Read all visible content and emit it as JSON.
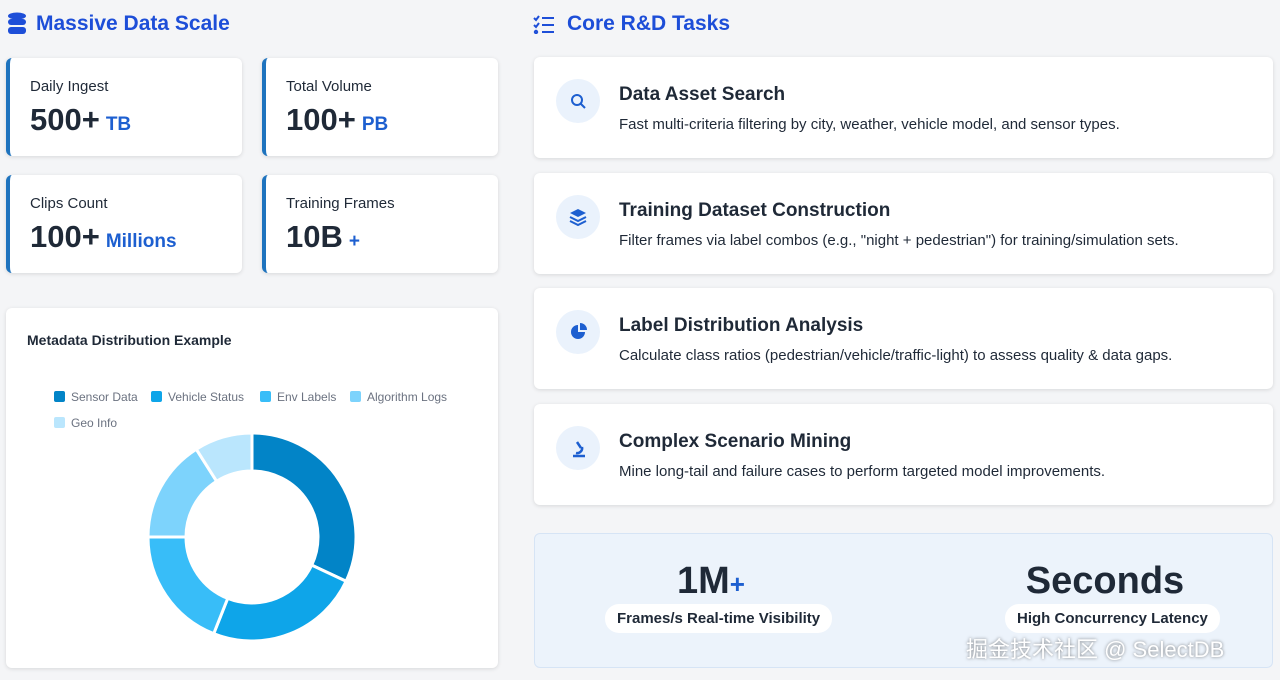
{
  "left_section": {
    "title": "Massive Data Scale",
    "stats": [
      {
        "label": "Daily Ingest",
        "value": "500+",
        "unit": "TB"
      },
      {
        "label": "Total Volume",
        "value": "100+",
        "unit": "PB"
      },
      {
        "label": "Clips Count",
        "value": "100+",
        "unit": "Millions"
      },
      {
        "label": "Training Frames",
        "value": "10B",
        "unit": "+"
      }
    ]
  },
  "chart_data": {
    "type": "pie",
    "title": "Metadata Distribution Example",
    "donut": true,
    "categories": [
      "Sensor Data",
      "Vehicle Status",
      "Env Labels",
      "Algorithm Logs",
      "Geo Info"
    ],
    "values": [
      32,
      24,
      19,
      16,
      9
    ],
    "colors": [
      "#0284c7",
      "#0ea5e9",
      "#38bdf8",
      "#7dd3fc",
      "#bae6fd"
    ]
  },
  "right_section": {
    "title": "Core R&D Tasks",
    "tasks": [
      {
        "title": "Data Asset Search",
        "description": "Fast multi-criteria filtering by city, weather, vehicle model, and sensor types."
      },
      {
        "title": "Training Dataset Construction",
        "description": "Filter frames via label combos (e.g., \"night + pedestrian\") for training/simulation sets."
      },
      {
        "title": "Label Distribution Analysis",
        "description": "Calculate class ratios (pedestrian/vehicle/traffic-light) to assess quality & data gaps."
      },
      {
        "title": "Complex Scenario Mining",
        "description": "Mine long-tail and failure cases to perform targeted model improvements."
      }
    ],
    "metrics": [
      {
        "value": "1M",
        "suffix": "+",
        "label": "Frames/s Real-time Visibility"
      },
      {
        "value": "Seconds",
        "label": "High Concurrency Latency"
      }
    ]
  },
  "watermark": "掘金技术社区 @ SelectDB"
}
